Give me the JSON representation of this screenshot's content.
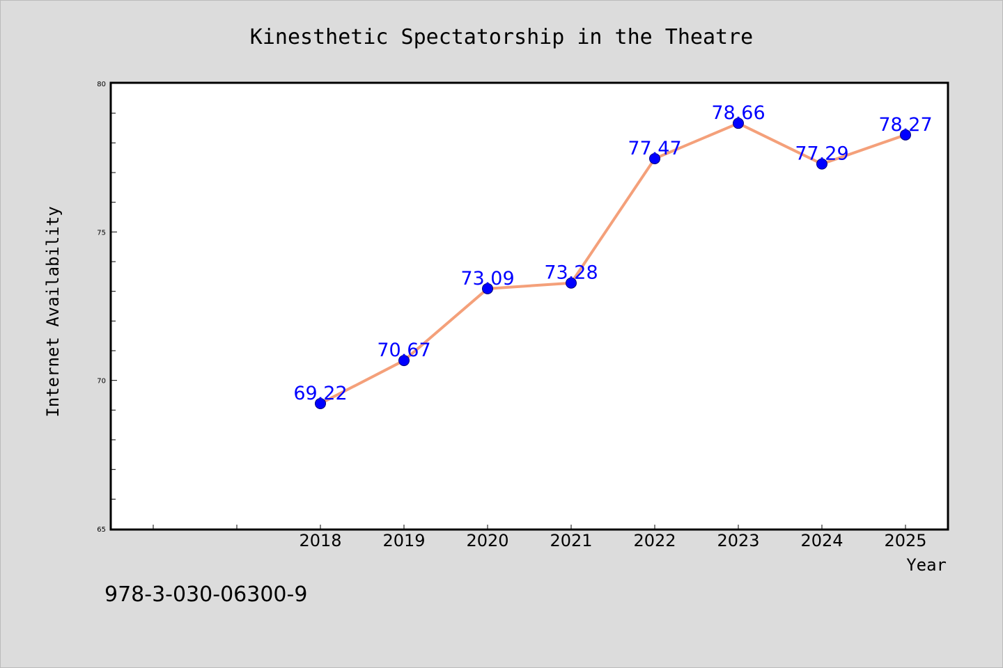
{
  "chart_data": {
    "type": "line",
    "title": "Kinesthetic Spectatorship in the Theatre",
    "xlabel": "Year",
    "ylabel": "Internet Availability",
    "categories": [
      "2018",
      "2019",
      "2020",
      "2021",
      "2022",
      "2023",
      "2024",
      "2025"
    ],
    "series": [
      {
        "values": [
          69.22,
          70.67,
          73.09,
          73.28,
          77.47,
          78.66,
          77.29,
          78.27
        ]
      }
    ],
    "data_labels": [
      "69.22",
      "70.67",
      "73.09",
      "73.28",
      "77.47",
      "78.66",
      "77.29",
      "78.27"
    ],
    "ylim": [
      65,
      80
    ],
    "yticks": [
      65,
      70,
      75,
      80
    ],
    "grid": false,
    "legend": "none",
    "colors": {
      "line": "#f4a07a",
      "marker": "#0000ff",
      "data_label": "#0000ff",
      "background": "#dcdcdc",
      "plot_background": "#ffffff"
    }
  },
  "annotation": "978-3-030-06300-9"
}
